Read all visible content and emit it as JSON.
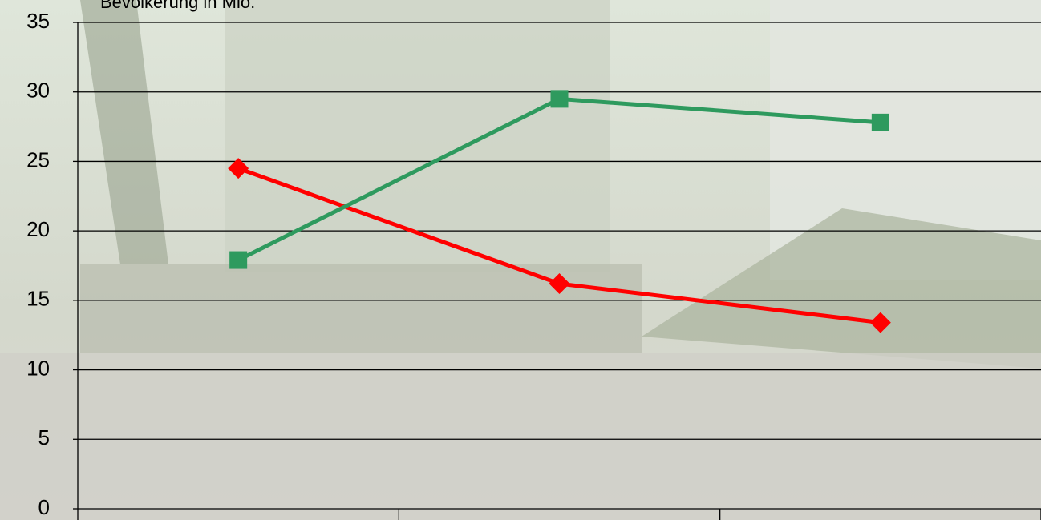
{
  "chart_data": {
    "type": "line",
    "title": "Bevölkerung in Mio.",
    "categories": [
      null,
      null,
      null
    ],
    "series": [
      {
        "color": "#ff0000",
        "marker": "diamond",
        "values": [
          24.5,
          16.2,
          13.4
        ]
      },
      {
        "color": "#2e9a5e",
        "marker": "square",
        "values": [
          17.9,
          29.5,
          27.8
        ]
      }
    ],
    "ylim": [
      0,
      35
    ],
    "yticks": [
      0,
      5,
      10,
      15,
      20,
      25,
      30,
      35
    ],
    "grid": true
  }
}
